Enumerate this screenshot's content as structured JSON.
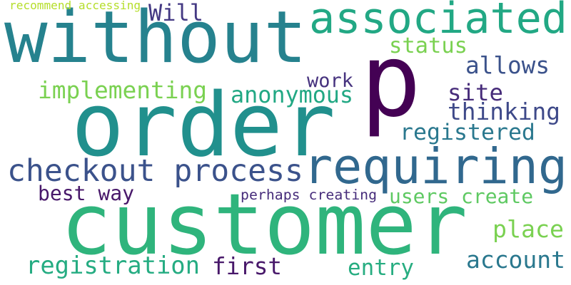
{
  "background": "#ffffff",
  "words": [
    {
      "text": "without",
      "color": "#26828e"
    },
    {
      "text": "p",
      "color": "#440154"
    },
    {
      "text": "order",
      "color": "#21908d"
    },
    {
      "text": "customer",
      "color": "#2fb47c"
    },
    {
      "text": "requiring",
      "color": "#31688e"
    },
    {
      "text": "associated",
      "color": "#22a884"
    },
    {
      "text": "checkout process",
      "color": "#3b528b"
    },
    {
      "text": "registration",
      "color": "#25ac82"
    },
    {
      "text": "anonymous",
      "color": "#22a884"
    },
    {
      "text": "implementing",
      "color": "#7ad151"
    },
    {
      "text": "registered",
      "color": "#2a788e"
    },
    {
      "text": "thinking",
      "color": "#3e4989"
    },
    {
      "text": "account",
      "color": "#2a788e"
    },
    {
      "text": "allows",
      "color": "#3b528b"
    },
    {
      "text": "site",
      "color": "#472c7a"
    },
    {
      "text": "work",
      "color": "#46327e"
    },
    {
      "text": "first",
      "color": "#48186a"
    },
    {
      "text": "entry",
      "color": "#27ad81"
    },
    {
      "text": "place",
      "color": "#7ad151"
    },
    {
      "text": "Will",
      "color": "#443983"
    },
    {
      "text": "status",
      "color": "#7ad151"
    },
    {
      "text": "users create",
      "color": "#5ec962"
    },
    {
      "text": "best way",
      "color": "#48186a"
    },
    {
      "text": "perhaps creating",
      "color": "#472d7b"
    },
    {
      "text": "recommend accessing",
      "color": "#b5de2b"
    }
  ]
}
